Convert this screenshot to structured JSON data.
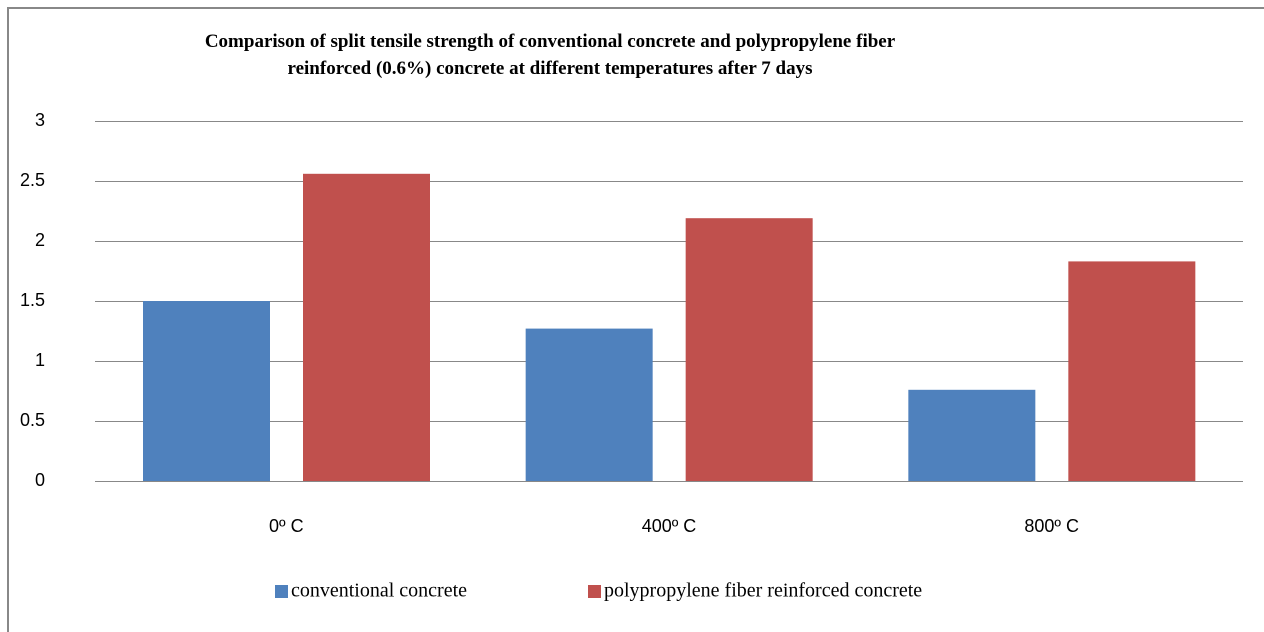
{
  "chart_data": {
    "type": "bar",
    "title": "Comparison of split tensile strength of conventional concrete and polypropylene fiber reinforced (0.6%) concrete at different temperatures after 7 days",
    "categories": [
      "0º C",
      "400º C",
      "800º C"
    ],
    "series": [
      {
        "name": "conventional concrete",
        "color": "#4f81bd",
        "values": [
          1.5,
          1.27,
          0.76
        ]
      },
      {
        "name": "polypropylene fiber reinforced concrete",
        "color": "#c0504d",
        "values": [
          2.56,
          2.19,
          1.83
        ]
      }
    ],
    "ylim": [
      0,
      3
    ],
    "yticks": [
      0,
      0.5,
      1,
      1.5,
      2,
      2.5,
      3
    ],
    "grid": true,
    "legend": "bottom"
  }
}
